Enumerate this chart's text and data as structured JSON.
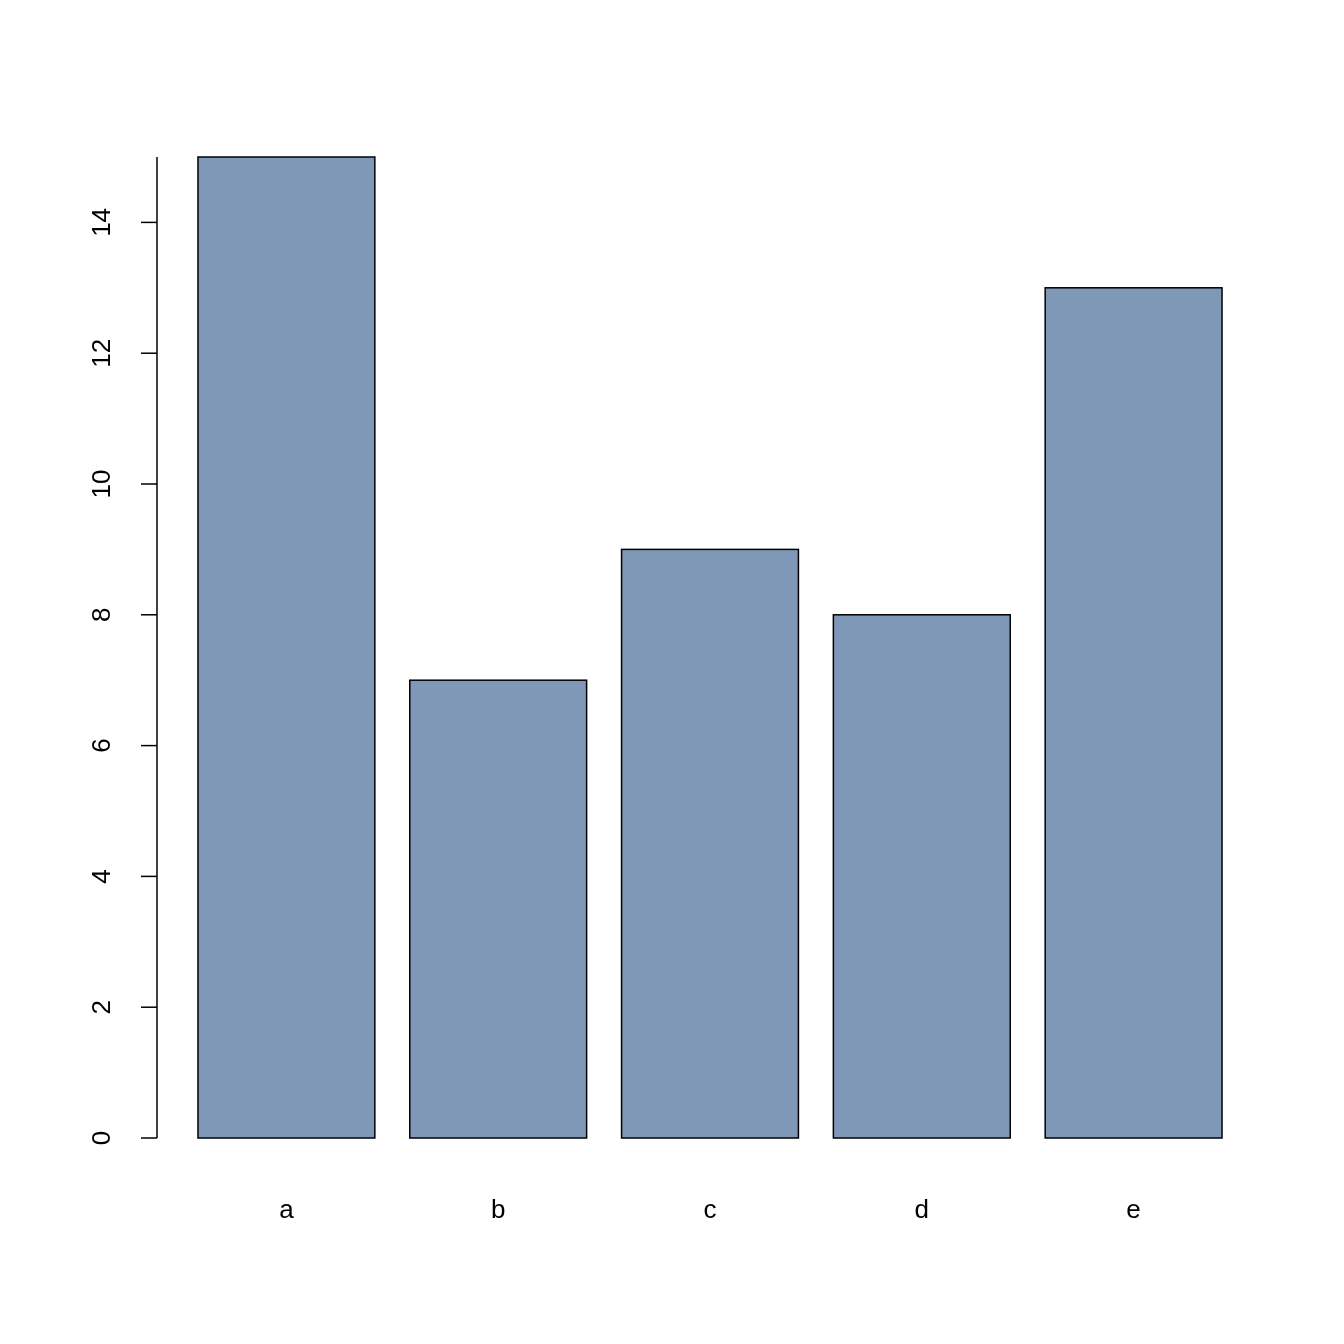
{
  "chart_data": {
    "type": "bar",
    "categories": [
      "a",
      "b",
      "c",
      "d",
      "e"
    ],
    "values": [
      15,
      7,
      9,
      8,
      13
    ],
    "color": "#7f98b7",
    "ylim": [
      0,
      15
    ],
    "yticks": [
      0,
      2,
      4,
      6,
      8,
      10,
      12,
      14
    ],
    "grid": false
  }
}
